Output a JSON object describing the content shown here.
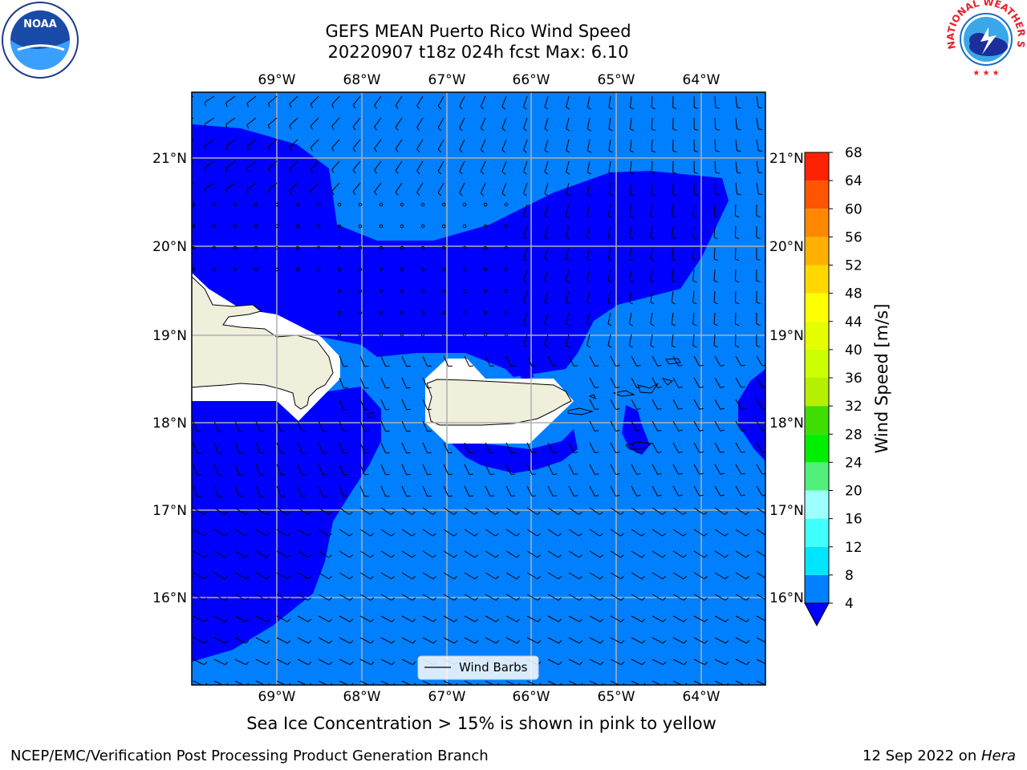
{
  "title": {
    "line1": "GEFS MEAN Puerto Rico Wind Speed",
    "line2": "20220907 t18z 024h fcst   Max: 6.10"
  },
  "subtitle": "Sea Ice Concentration > 15% is shown in pink to yellow",
  "footer": {
    "left": "NCEP/EMC/Verification Post Processing Product Generation Branch",
    "date": "12 Sep 2022 on ",
    "machine": "Hera"
  },
  "logos": {
    "noaa_text": "NOAA",
    "nws_text": "NATIONAL WEATHER SERVICE"
  },
  "map": {
    "lon_ticks": [
      "69°W",
      "68°W",
      "67°W",
      "66°W",
      "65°W",
      "64°W"
    ],
    "lat_ticks": [
      "21°N",
      "20°N",
      "19°N",
      "18°N",
      "17°N",
      "16°N"
    ],
    "legend_label": "Wind Barbs",
    "colors": {
      "ocean_light": "#0080ff",
      "ocean_dark": "#0000ff",
      "land": "#efefdc",
      "grid": "#b0b0b0"
    }
  },
  "colorbar": {
    "label": "Wind Speed [m/s]",
    "ticks": [
      "4",
      "8",
      "12",
      "16",
      "20",
      "24",
      "28",
      "32",
      "36",
      "40",
      "44",
      "48",
      "52",
      "56",
      "60",
      "64",
      "68"
    ],
    "colors": [
      "#0080ff",
      "#00e5ff",
      "#40ffff",
      "#9effff",
      "#50f07a",
      "#00ee00",
      "#40dd00",
      "#b5f000",
      "#ccff00",
      "#e5ff00",
      "#ffff00",
      "#ffd800",
      "#ffb000",
      "#ff8800",
      "#ff5500",
      "#ff2200",
      "#ff0000"
    ],
    "extend_color": "#0000ff"
  }
}
